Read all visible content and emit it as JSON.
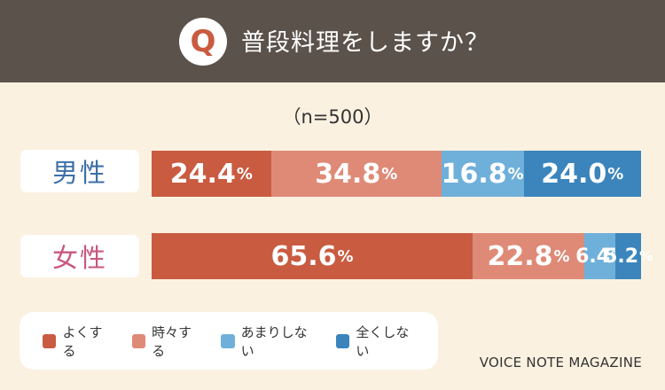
{
  "header": {
    "badge": "Q",
    "title": "普段料理をしますか？"
  },
  "sample_size": "（n=500）",
  "colors": {
    "often": "#c95b41",
    "sometimes": "#de8a77",
    "rarely": "#6fb0da",
    "never": "#3b85bc",
    "male_label": "#3d6fa8",
    "female_label": "#c9577d"
  },
  "chart_data": {
    "type": "bar",
    "orientation": "horizontal",
    "stacked": true,
    "normalized": true,
    "categories": [
      "男性",
      "女性"
    ],
    "series": [
      {
        "name": "よくする",
        "values": [
          24.4,
          65.6
        ]
      },
      {
        "name": "時々する",
        "values": [
          34.8,
          22.8
        ]
      },
      {
        "name": "あまりしない",
        "values": [
          16.8,
          6.4
        ]
      },
      {
        "name": "全くしない",
        "values": [
          24.0,
          5.2
        ]
      }
    ],
    "value_suffix": "%",
    "legend_position": "bottom-left"
  },
  "brand": "VOICE NOTE MAGAZINE"
}
